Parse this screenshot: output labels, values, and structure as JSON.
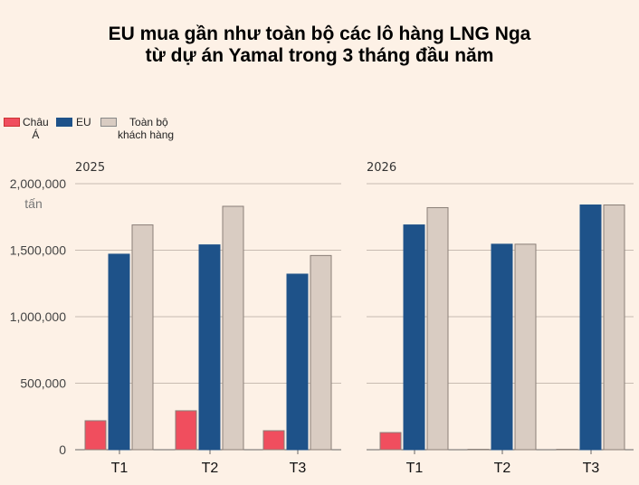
{
  "chart_data": [
    {
      "type": "bar",
      "title_line1": "EU mua gần như toàn bộ các lô hàng LNG Nga",
      "title_line2": "từ dự án Yamal trong 3 tháng đầu năm",
      "panel": "2025",
      "categories": [
        "T1",
        "T2",
        "T3"
      ],
      "series": [
        {
          "name": "Châu Á",
          "color": "#f04e5e",
          "values": [
            218000,
            293000,
            143000
          ]
        },
        {
          "name": "EU",
          "color": "#1e5289",
          "values": [
            1470000,
            1540000,
            1320000
          ]
        },
        {
          "name": "Toàn bộ khách hàng",
          "color": "#d9ccc2",
          "values": [
            1690000,
            1830000,
            1460000
          ]
        }
      ],
      "ylim": [
        0,
        2000000
      ],
      "yticks": [
        "0",
        "500,000",
        "1,000,000",
        "1,500,000",
        "2,000,000"
      ],
      "ylabel": "tấn",
      "grid": true,
      "legend": "top-left"
    },
    {
      "type": "bar",
      "panel": "2026",
      "categories": [
        "T1",
        "T2",
        "T3"
      ],
      "series": [
        {
          "name": "Châu Á",
          "color": "#f04e5e",
          "values": [
            129000,
            3000,
            3000
          ]
        },
        {
          "name": "EU",
          "color": "#1e5289",
          "values": [
            1690000,
            1545000,
            1840000
          ]
        },
        {
          "name": "Toàn bộ khách hàng",
          "color": "#d9ccc2",
          "values": [
            1820000,
            1545000,
            1840000
          ]
        }
      ],
      "ylim": [
        0,
        2000000
      ]
    }
  ],
  "legend": {
    "asia_1": "Châu",
    "asia_2": "Á",
    "eu": "EU",
    "total_1": "Toàn bộ",
    "total_2": "khách hàng"
  }
}
